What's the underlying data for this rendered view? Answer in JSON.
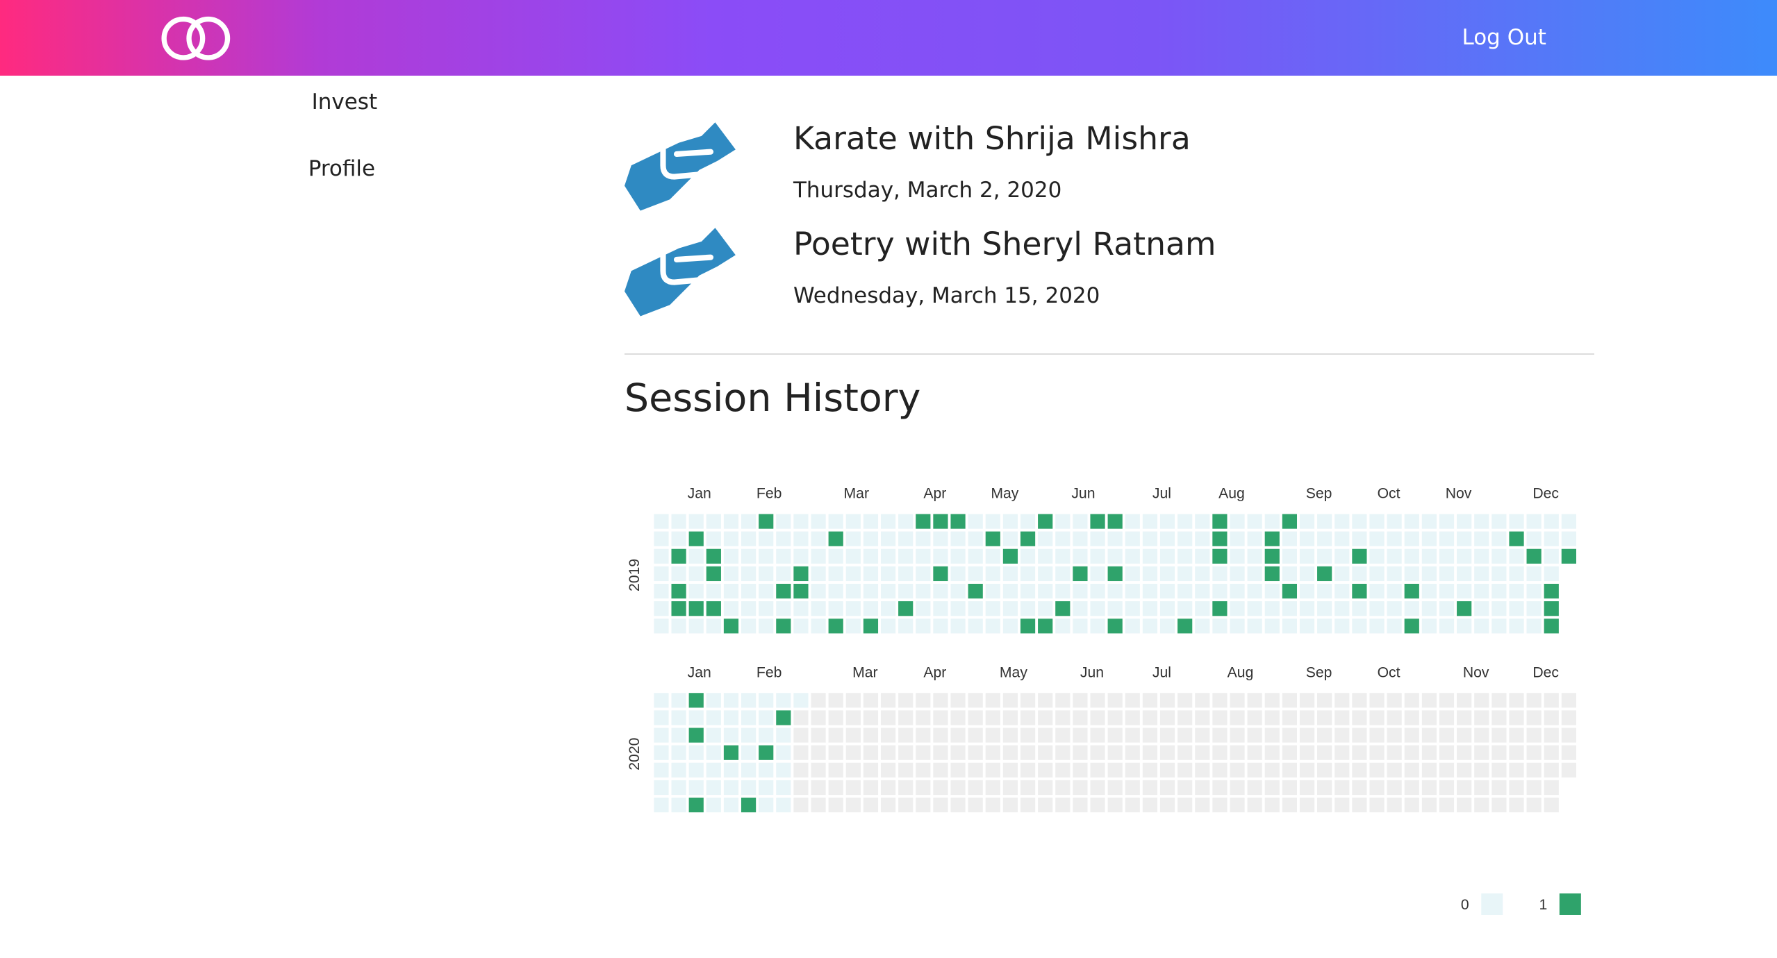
{
  "header": {
    "logo_icon": "interlocked-rings-icon",
    "logout_label": "Log Out"
  },
  "sidebar": {
    "items": [
      {
        "label": "Invest"
      },
      {
        "label": "Profile"
      }
    ]
  },
  "sessions": [
    {
      "icon": "handshake-icon",
      "title": "Karate with Shrija Mishra",
      "date": "Thursday, March 2, 2020"
    },
    {
      "icon": "handshake-icon",
      "title": "Poetry with Sheryl Ratnam",
      "date": "Wednesday, March 15, 2020"
    }
  ],
  "history": {
    "title": "Session History"
  },
  "colors": {
    "empty": "#e8f5f8",
    "active": "#2fa36b",
    "future": "#eeeeee",
    "icon": "#2f8ac2"
  },
  "chart_data": {
    "type": "heatmap",
    "years": [
      {
        "year": "2019",
        "month_labels": [
          "Jan",
          "Feb",
          "Mar",
          "Apr",
          "May",
          "Jun",
          "Jul",
          "Aug",
          "Sep",
          "Oct",
          "Nov",
          "Dec"
        ],
        "weeks": 53,
        "days_in_last_week": 3,
        "active": [
          [
            1,
            2
          ],
          [
            1,
            4
          ],
          [
            1,
            5
          ],
          [
            2,
            1
          ],
          [
            2,
            5
          ],
          [
            3,
            2
          ],
          [
            3,
            3
          ],
          [
            3,
            5
          ],
          [
            4,
            6
          ],
          [
            6,
            0
          ],
          [
            7,
            4
          ],
          [
            7,
            6
          ],
          [
            8,
            3
          ],
          [
            8,
            4
          ],
          [
            10,
            1
          ],
          [
            10,
            6
          ],
          [
            12,
            6
          ],
          [
            14,
            5
          ],
          [
            15,
            0
          ],
          [
            16,
            0
          ],
          [
            16,
            3
          ],
          [
            17,
            0
          ],
          [
            18,
            4
          ],
          [
            19,
            1
          ],
          [
            20,
            2
          ],
          [
            21,
            1
          ],
          [
            21,
            6
          ],
          [
            22,
            0
          ],
          [
            22,
            6
          ],
          [
            23,
            5
          ],
          [
            24,
            3
          ],
          [
            25,
            0
          ],
          [
            26,
            0
          ],
          [
            26,
            3
          ],
          [
            26,
            6
          ],
          [
            30,
            6
          ],
          [
            32,
            0
          ],
          [
            32,
            1
          ],
          [
            32,
            2
          ],
          [
            32,
            5
          ],
          [
            35,
            1
          ],
          [
            35,
            2
          ],
          [
            35,
            3
          ],
          [
            36,
            0
          ],
          [
            36,
            4
          ],
          [
            38,
            3
          ],
          [
            40,
            2
          ],
          [
            40,
            4
          ],
          [
            43,
            4
          ],
          [
            43,
            6
          ],
          [
            46,
            5
          ],
          [
            49,
            1
          ],
          [
            50,
            2
          ],
          [
            51,
            4
          ],
          [
            51,
            5
          ],
          [
            51,
            6
          ],
          [
            52,
            2
          ]
        ]
      },
      {
        "year": "2020",
        "month_labels": [
          "Jan",
          "Feb",
          "Mar",
          "Apr",
          "May",
          "Jun",
          "Jul",
          "Aug",
          "Sep",
          "Oct",
          "Nov",
          "Dec"
        ],
        "weeks": 53,
        "days_in_last_week": 5,
        "data_through_week": 8,
        "data_through_weekday": 0,
        "active": [
          [
            2,
            0
          ],
          [
            2,
            2
          ],
          [
            2,
            6
          ],
          [
            4,
            3
          ],
          [
            5,
            6
          ],
          [
            6,
            3
          ],
          [
            7,
            1
          ]
        ]
      }
    ],
    "legend": [
      {
        "label": "0"
      },
      {
        "label": "1"
      }
    ]
  }
}
